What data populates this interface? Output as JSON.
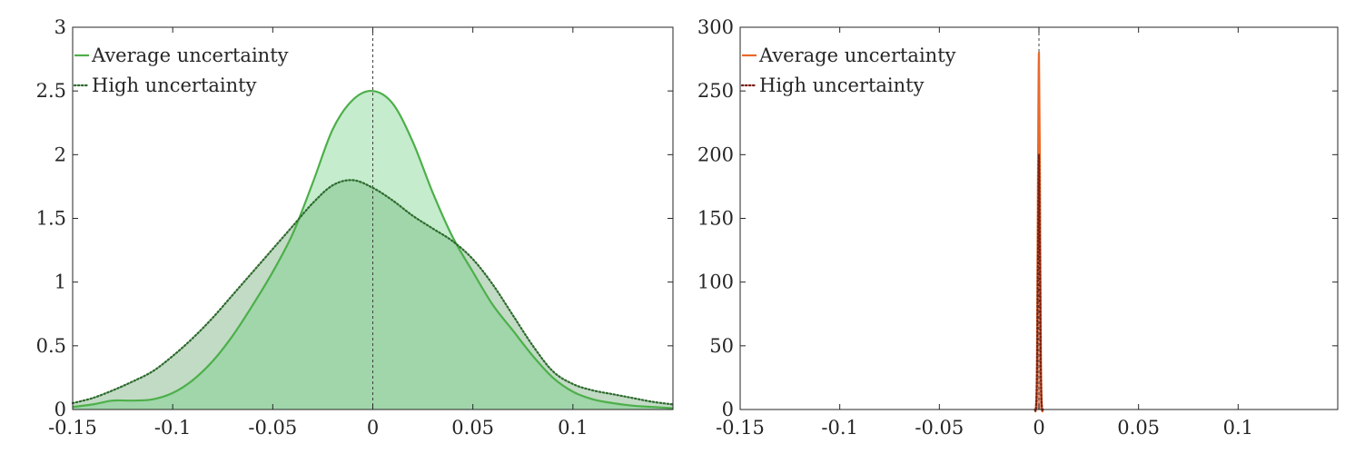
{
  "chart_data": [
    {
      "type": "area",
      "title": "",
      "xlabel": "",
      "ylabel": "",
      "xlim": [
        -0.15,
        0.15
      ],
      "ylim": [
        0,
        3
      ],
      "xticks": [
        -0.15,
        -0.1,
        -0.05,
        0,
        0.05,
        0.1
      ],
      "xtick_labels": [
        "-0.15",
        "-0.1",
        "-0.05",
        "0",
        "0.05",
        "0.1"
      ],
      "yticks": [
        0,
        0.5,
        1,
        1.5,
        2,
        2.5,
        3
      ],
      "ytick_labels": [
        "0",
        "0.5",
        "1",
        "1.5",
        "2",
        "2.5",
        "3"
      ],
      "grid": false,
      "legend_position": "top-left",
      "reference_line_x": 0,
      "series": [
        {
          "name": "Average uncertainty",
          "style": "solid",
          "color": "#4daf4a",
          "fill": "#6fcf82",
          "x": [
            -0.15,
            -0.14,
            -0.13,
            -0.12,
            -0.11,
            -0.1,
            -0.09,
            -0.08,
            -0.07,
            -0.06,
            -0.05,
            -0.04,
            -0.03,
            -0.02,
            -0.01,
            0,
            0.01,
            0.02,
            0.03,
            0.04,
            0.05,
            0.06,
            0.07,
            0.08,
            0.09,
            0.1,
            0.11,
            0.12,
            0.13,
            0.14,
            0.15
          ],
          "y": [
            0.02,
            0.04,
            0.07,
            0.07,
            0.08,
            0.13,
            0.23,
            0.38,
            0.58,
            0.82,
            1.08,
            1.38,
            1.78,
            2.2,
            2.43,
            2.5,
            2.4,
            2.1,
            1.7,
            1.35,
            1.08,
            0.82,
            0.62,
            0.42,
            0.25,
            0.14,
            0.08,
            0.05,
            0.03,
            0.02,
            0.01
          ]
        },
        {
          "name": "High uncertainty",
          "style": "dotted",
          "color": "#2e6b2e",
          "fill": "#86b88c",
          "x": [
            -0.15,
            -0.14,
            -0.13,
            -0.12,
            -0.11,
            -0.1,
            -0.09,
            -0.08,
            -0.07,
            -0.06,
            -0.05,
            -0.04,
            -0.03,
            -0.02,
            -0.01,
            0,
            0.01,
            0.02,
            0.03,
            0.04,
            0.05,
            0.06,
            0.07,
            0.08,
            0.09,
            0.1,
            0.11,
            0.12,
            0.13,
            0.14,
            0.15
          ],
          "y": [
            0.05,
            0.09,
            0.15,
            0.22,
            0.3,
            0.42,
            0.56,
            0.72,
            0.9,
            1.08,
            1.26,
            1.44,
            1.62,
            1.76,
            1.8,
            1.74,
            1.64,
            1.52,
            1.42,
            1.32,
            1.18,
            0.98,
            0.74,
            0.5,
            0.3,
            0.2,
            0.15,
            0.12,
            0.09,
            0.06,
            0.04
          ]
        }
      ]
    },
    {
      "type": "area",
      "title": "",
      "xlabel": "",
      "ylabel": "",
      "xlim": [
        -0.15,
        0.15
      ],
      "ylim": [
        0,
        300
      ],
      "xticks": [
        -0.15,
        -0.1,
        -0.05,
        0,
        0.05,
        0.1
      ],
      "xtick_labels": [
        "-0.15",
        "-0.1",
        "-0.05",
        "0",
        "0.05",
        "0.1"
      ],
      "yticks": [
        0,
        50,
        100,
        150,
        200,
        250,
        300
      ],
      "ytick_labels": [
        "0",
        "50",
        "100",
        "150",
        "200",
        "250",
        "300"
      ],
      "grid": false,
      "legend_position": "top-left",
      "reference_line_x": 0,
      "series": [
        {
          "name": "Average uncertainty",
          "style": "solid",
          "color": "#e8692a",
          "fill": "#f08a4b",
          "x": [
            -0.002,
            -0.0015,
            -0.001,
            -0.0005,
            0,
            0.0005,
            0.001,
            0.0015,
            0.002
          ],
          "y": [
            0,
            2,
            40,
            180,
            280,
            180,
            40,
            2,
            0
          ]
        },
        {
          "name": "High uncertainty",
          "style": "dotted",
          "color": "#7a1f12",
          "fill": "#b0462e",
          "x": [
            -0.002,
            -0.0015,
            -0.001,
            -0.0005,
            0,
            0.0005,
            0.001,
            0.0015,
            0.002
          ],
          "y": [
            0,
            1,
            25,
            120,
            200,
            120,
            25,
            1,
            0
          ]
        }
      ]
    }
  ]
}
